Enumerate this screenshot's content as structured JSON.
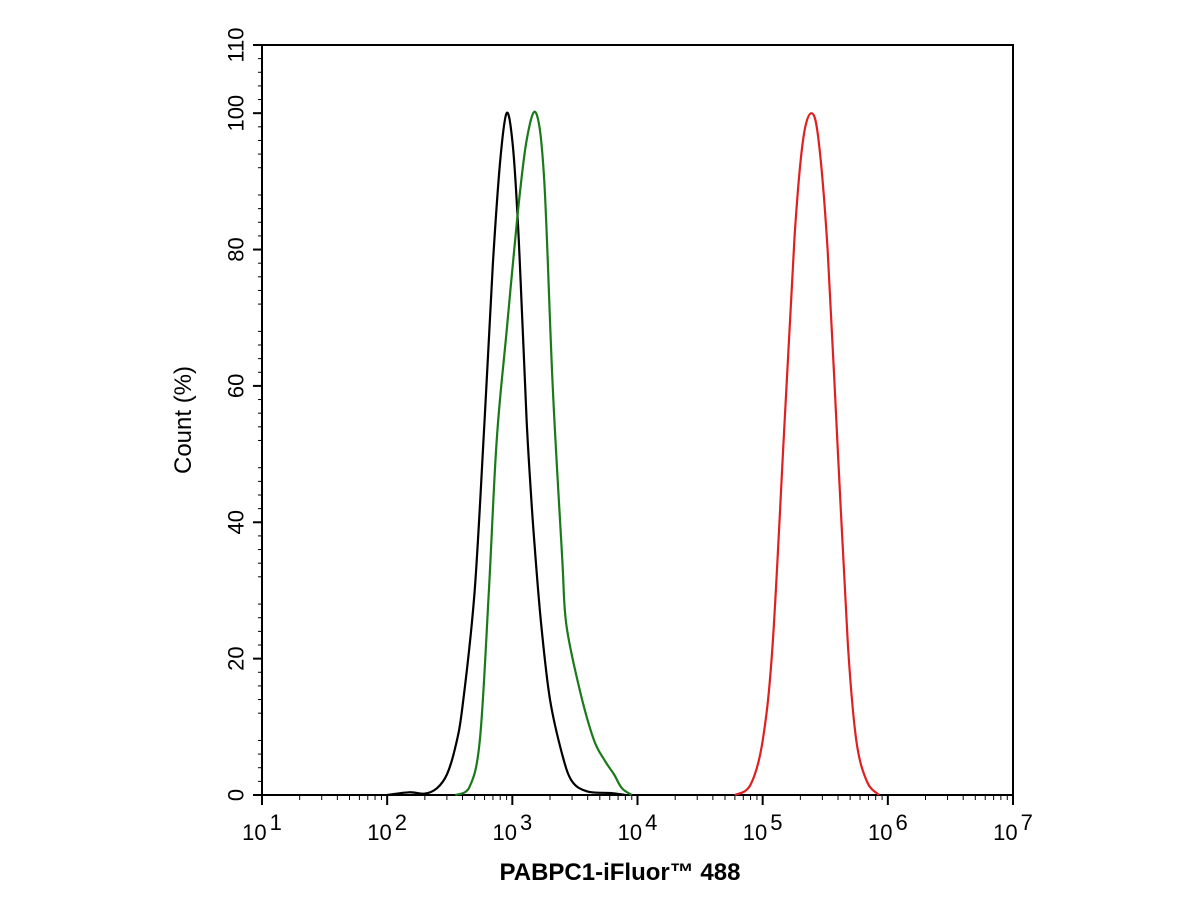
{
  "chart_data": {
    "type": "line",
    "title": "",
    "xlabel": "PABPC1-iFluor™ 488",
    "ylabel": "Count  (%)",
    "xscale": "log",
    "xlim": [
      10,
      10000000
    ],
    "ylim": [
      0,
      110
    ],
    "grid": false,
    "x_ticks": [
      {
        "value": 10,
        "base": "10",
        "exp": "1"
      },
      {
        "value": 100,
        "base": "10",
        "exp": "2"
      },
      {
        "value": 1000,
        "base": "10",
        "exp": "3"
      },
      {
        "value": 10000,
        "base": "10",
        "exp": "4"
      },
      {
        "value": 100000,
        "base": "10",
        "exp": "5"
      },
      {
        "value": 1000000,
        "base": "10",
        "exp": "6"
      },
      {
        "value": 10000000,
        "base": "10",
        "exp": "7"
      }
    ],
    "y_ticks": [
      0,
      20,
      40,
      60,
      80,
      100,
      110
    ],
    "series": [
      {
        "color": "#000000",
        "points": [
          [
            100,
            0
          ],
          [
            150,
            0.4
          ],
          [
            200,
            0.2
          ],
          [
            250,
            1
          ],
          [
            300,
            3
          ],
          [
            350,
            7
          ],
          [
            400,
            13
          ],
          [
            500,
            30
          ],
          [
            600,
            55
          ],
          [
            700,
            78
          ],
          [
            800,
            93
          ],
          [
            900,
            100
          ],
          [
            1000,
            96
          ],
          [
            1100,
            85
          ],
          [
            1200,
            70
          ],
          [
            1300,
            55
          ],
          [
            1400,
            45
          ],
          [
            1500,
            37
          ],
          [
            1700,
            25
          ],
          [
            2000,
            14
          ],
          [
            2500,
            6
          ],
          [
            3000,
            2
          ],
          [
            4000,
            0.5
          ],
          [
            6000,
            0.3
          ],
          [
            8000,
            0
          ]
        ]
      },
      {
        "color": "#1a7a1a",
        "points": [
          [
            350,
            0
          ],
          [
            450,
            1
          ],
          [
            550,
            8
          ],
          [
            650,
            30
          ],
          [
            750,
            52
          ],
          [
            900,
            68
          ],
          [
            1100,
            85
          ],
          [
            1300,
            96
          ],
          [
            1550,
            100
          ],
          [
            1800,
            90
          ],
          [
            2100,
            60
          ],
          [
            2500,
            35
          ],
          [
            2700,
            25
          ],
          [
            3500,
            15
          ],
          [
            4500,
            8
          ],
          [
            5500,
            5
          ],
          [
            6500,
            3
          ],
          [
            7500,
            1
          ],
          [
            9000,
            0
          ]
        ]
      },
      {
        "color": "#e02020",
        "points": [
          [
            60000,
            0
          ],
          [
            80000,
            1.5
          ],
          [
            100000,
            8
          ],
          [
            120000,
            22
          ],
          [
            150000,
            55
          ],
          [
            180000,
            82
          ],
          [
            210000,
            96
          ],
          [
            245000,
            100
          ],
          [
            280000,
            96
          ],
          [
            330000,
            80
          ],
          [
            400000,
            50
          ],
          [
            480000,
            22
          ],
          [
            560000,
            8
          ],
          [
            680000,
            2
          ],
          [
            850000,
            0
          ]
        ]
      }
    ]
  }
}
